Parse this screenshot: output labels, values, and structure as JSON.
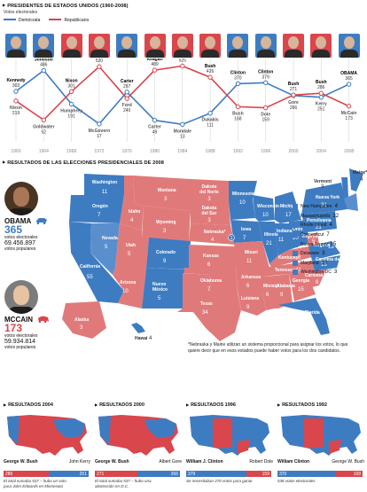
{
  "header": {
    "title": "PRESIDENTES DE ESTADOS UNIDOS (1960-2008)",
    "subtitle": "Votos electorales",
    "legend_dem": "Demócrata",
    "legend_rep": "Republicano"
  },
  "colors": {
    "dem": "#3e7cc2",
    "rep": "#d9464c",
    "dem_light": "#5a8fce",
    "rep_map": "#e07a7a",
    "grid": "#cfcfcf"
  },
  "chart_data": [
    {
      "type": "line",
      "title": "PRESIDENTES DE ESTADOS UNIDOS (1960-2008)",
      "subtitle": "Votos electorales",
      "x": [
        "1960",
        "1964",
        "1968",
        "1972",
        "1976",
        "1980",
        "1984",
        "1988",
        "1992",
        "1996",
        "2000",
        "2004",
        "2008"
      ],
      "series": [
        {
          "name": "Demócrata",
          "values": [
            303,
            486,
            191,
            17,
            297,
            49,
            13,
            111,
            370,
            379,
            266,
            251,
            365
          ],
          "labels": [
            "Kennedy",
            "Johnson",
            "Humphrey",
            "McGovern",
            "Carter",
            "Carter",
            "Mondale",
            "Dukakis",
            "Clinton",
            "Clinton",
            "Gore",
            "Kerry",
            "OBAMA"
          ]
        },
        {
          "name": "Republicano",
          "values": [
            219,
            52,
            301,
            520,
            240,
            489,
            525,
            426,
            168,
            159,
            271,
            286,
            173
          ],
          "labels": [
            "Nixon",
            "Goldwater",
            "Nixon",
            "Nixon",
            "Ford",
            "Reagan",
            "Reagan",
            "Bush",
            "Bush",
            "Dole",
            "Bush",
            "Bush",
            "McCain"
          ]
        }
      ],
      "winners": [
        "dem",
        "dem",
        "rep",
        "rep",
        "dem",
        "rep",
        "rep",
        "rep",
        "dem",
        "dem",
        "rep",
        "rep",
        "dem"
      ],
      "ylim": [
        0,
        560
      ]
    },
    {
      "type": "table",
      "title": "RESULTADOS DE LAS ELECCIONES PRESIDENCIALES DE 2008",
      "columns": [
        "Estado",
        "Votos electorales",
        "Ganador"
      ],
      "rows": [
        [
          "Washington",
          11,
          "dem"
        ],
        [
          "Oregón",
          7,
          "dem"
        ],
        [
          "California",
          55,
          "dem"
        ],
        [
          "Nevada",
          5,
          "dem"
        ],
        [
          "Idaho",
          4,
          "rep"
        ],
        [
          "Montana",
          3,
          "rep"
        ],
        [
          "Wyoming",
          3,
          "rep"
        ],
        [
          "Utah",
          5,
          "rep"
        ],
        [
          "Arizona",
          10,
          "rep"
        ],
        [
          "Colorado",
          9,
          "dem"
        ],
        [
          "Nuevo México",
          5,
          "dem"
        ],
        [
          "Dakota del Norte",
          3,
          "rep"
        ],
        [
          "Dakota del Sur",
          3,
          "rep"
        ],
        [
          "Nebraska*",
          4,
          "rep"
        ],
        [
          "Kansas",
          6,
          "rep"
        ],
        [
          "Oklahoma",
          7,
          "rep"
        ],
        [
          "Texas",
          34,
          "rep"
        ],
        [
          "Minnesota",
          10,
          "dem"
        ],
        [
          "Iowa",
          7,
          "dem"
        ],
        [
          "Misuri",
          11,
          "rep"
        ],
        [
          "Arkansas",
          6,
          "rep"
        ],
        [
          "Luisiana",
          9,
          "rep"
        ],
        [
          "Wisconsin",
          10,
          "dem"
        ],
        [
          "Illinois",
          21,
          "dem"
        ],
        [
          "Michigan",
          17,
          "dem"
        ],
        [
          "Indiana",
          11,
          "dem"
        ],
        [
          "Ohio",
          20,
          "dem"
        ],
        [
          "Kentucky",
          8,
          "rep"
        ],
        [
          "Tennessee",
          11,
          "rep"
        ],
        [
          "Misisipi",
          6,
          "rep"
        ],
        [
          "Alabama",
          9,
          "rep"
        ],
        [
          "Georgia",
          15,
          "rep"
        ],
        [
          "Florida",
          27,
          "dem"
        ],
        [
          "Carolina del Sur",
          8,
          "rep"
        ],
        [
          "Carolina del Norte",
          15,
          "dem"
        ],
        [
          "Virginia",
          13,
          "dem"
        ],
        [
          "Virginia Occ.",
          5,
          "rep"
        ],
        [
          "Pensilvania",
          21,
          "dem"
        ],
        [
          "Nueva York",
          31,
          "dem"
        ],
        [
          "Vermont",
          3,
          "dem"
        ],
        [
          "Maine*",
          4,
          "dem"
        ],
        [
          "Alaska",
          3,
          "rep"
        ],
        [
          "Hawai",
          4,
          "dem"
        ],
        [
          "New Hampshire",
          4,
          "dem"
        ],
        [
          "Massachusetts",
          12,
          "dem"
        ],
        [
          "Rhode Island",
          4,
          "dem"
        ],
        [
          "Connecticut",
          7,
          "dem"
        ],
        [
          "Nueva Jersey",
          15,
          "dem"
        ],
        [
          "Delaware",
          3,
          "dem"
        ],
        [
          "Maryland",
          10,
          "dem"
        ],
        [
          "Washington DC",
          3,
          "dem"
        ]
      ]
    },
    {
      "type": "bar",
      "title": "RESULTADOS 2008",
      "categories": [
        "OBAMA",
        "MCCAIN"
      ],
      "series": [
        {
          "name": "votos electorales",
          "values": [
            365,
            173
          ]
        },
        {
          "name": "votos populares",
          "values": [
            69456897,
            59934814
          ]
        }
      ]
    },
    {
      "type": "bar",
      "title": "RESULTADOS 2004",
      "categories": [
        "George W. Bush",
        "John Kerry"
      ],
      "values": [
        286,
        251
      ]
    },
    {
      "type": "bar",
      "title": "RESULTADOS 2000",
      "categories": [
        "George W. Bush",
        "Albert Gore"
      ],
      "values": [
        271,
        266
      ]
    },
    {
      "type": "bar",
      "title": "RESULTADOS 1996",
      "categories": [
        "William J. Clinton",
        "Robert Dole"
      ],
      "values": [
        379,
        159
      ]
    },
    {
      "type": "bar",
      "title": "RESULTADOS 1992",
      "categories": [
        "William Clinton",
        "George W. Bush"
      ],
      "values": [
        370,
        168
      ]
    }
  ],
  "map": {
    "title": "RESULTADOS DE LAS ELECCIONES PRESIDENCIALES DE 2008",
    "marker": "1",
    "small_states": [
      {
        "name": "New Hampshire",
        "votes": "4",
        "party": "dem"
      },
      {
        "name": "Massachusetts",
        "votes": "12",
        "party": "dem"
      },
      {
        "name": "Rhode Island",
        "votes": "4",
        "party": "dem"
      },
      {
        "name": "Connecticut",
        "votes": "7",
        "party": "dem"
      },
      {
        "name": "Nueva Jersey",
        "votes": "15",
        "party": "dem"
      },
      {
        "name": "Delaware",
        "votes": "3",
        "party": "dem"
      },
      {
        "name": "Maryland",
        "votes": "10",
        "party": "dem"
      },
      {
        "name": "Washington DC",
        "votes": "3",
        "party": "dem"
      }
    ],
    "note": "*Nebraska y Maine utilizan un sistema proporcional para asignar los votos, lo que quiere decir que en esos estados puede haber votos para los dos candidatos."
  },
  "obama": {
    "name": "OBAMA",
    "electoral": "365",
    "electoral_label": "votos electorales",
    "popular": "69.456.897",
    "popular_label": "votos populares"
  },
  "mccain": {
    "name": "MCCAIN",
    "electoral": "173",
    "electoral_label": "votos electorales",
    "popular": "59.934.814",
    "popular_label": "votos populares"
  },
  "minis": [
    {
      "title": "RESULTADOS 2004",
      "left": "George W.\nBush",
      "right": "John\nKerry",
      "lv": "286",
      "rv": "251",
      "lp": "rep",
      "rp": "dem",
      "note": "El total sumaba 537 – hubo un voto\npara John Edwards en Minnesota"
    },
    {
      "title": "RESULTADOS 2000",
      "left": "George W.\nBush",
      "right": "Albert\nGore",
      "lv": "271",
      "rv": "266",
      "lp": "rep",
      "rp": "dem",
      "note": "El total sumaba 537 – hubo una\nabstención en D.C."
    },
    {
      "title": "RESULTADOS 1996",
      "left": "William J.\nClinton",
      "right": "Robert\nDole",
      "lv": "379",
      "rv": "159",
      "lp": "dem",
      "rp": "rep",
      "note": "Se necesitaban 270 votos para ganar"
    },
    {
      "title": "RESULTADOS 1992",
      "left": "William\nClinton",
      "right": "George W.\nBush",
      "lv": "370",
      "rv": "168",
      "lp": "dem",
      "rp": "rep",
      "note": "538 votos electorales"
    }
  ]
}
